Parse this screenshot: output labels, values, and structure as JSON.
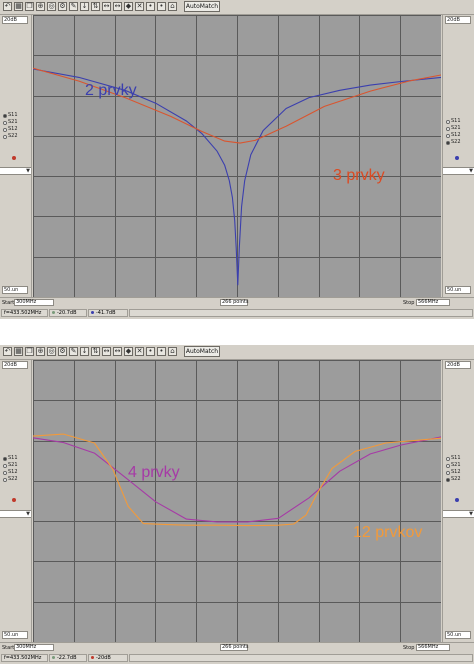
{
  "colors": {
    "window_bg": "#d4d0c8",
    "plot_bg": "#9c9c9c",
    "grid": "#5a5a5a",
    "blue_series": "#3b3fae",
    "red_series": "#d9552f",
    "purple_series": "#a63aa6",
    "orange_series": "#f29a3a",
    "label_blue": "#3b3fae",
    "label_red": "#dc4a22",
    "label_purple": "#a63aa6",
    "label_orange": "#f29a3a"
  },
  "toolbar": {
    "icons": [
      "undo-icon",
      "grid-icon",
      "copy-icon",
      "zoom-icon",
      "circle-icon",
      "settings-icon",
      "tool-icon",
      "down-arrow-icon",
      "flip-icon",
      "left-right-icon",
      "left-right-icon",
      "marker-icon",
      "delete-icon",
      "bullet-icon",
      "bullet-icon",
      "tag-icon"
    ],
    "automatch_label": "AutoMatch"
  },
  "side": {
    "top_scale": "20dB",
    "bottom_scale": "50.un",
    "radio_options": [
      "S11",
      "S21",
      "S12",
      "S22"
    ]
  },
  "panels": [
    {
      "left_selected": "S11",
      "right_selected": "S22",
      "bottom": {
        "start_label": "Start",
        "start_value": "300MHz",
        "points_value": "266 points",
        "stop_label": "Stop",
        "stop_value": "566MHz"
      },
      "status": {
        "frequency": "f=433.502MHz",
        "s11_value": "-20.7dB",
        "s22_value": "-41.7dB"
      },
      "chart_data": {
        "type": "line",
        "x_range": [
          300,
          566
        ],
        "ylim": [
          -50,
          20
        ],
        "grid": true,
        "series": [
          {
            "name": "2 prvky",
            "x": [
              300,
              330,
              360,
              380,
              400,
              410,
              420,
              425,
              428,
              430,
              431.5,
              432.5,
              433.5,
              434.5,
              436,
              438,
              442,
              450,
              465,
              480,
              500,
              520,
              540,
              566
            ],
            "y": [
              6.6,
              4.5,
              1.3,
              -1.9,
              -6.3,
              -9.4,
              -13.8,
              -17.3,
              -21.1,
              -25.3,
              -31.0,
              -37.8,
              -47,
              -37.8,
              -27.5,
              -21.1,
              -14.7,
              -8.7,
              -3.2,
              -0.5,
              1.3,
              2.6,
              3.5,
              4.5
            ]
          },
          {
            "name": "3 prvky",
            "x": [
              300,
              330,
              360,
              390,
              410,
              425,
              435,
              445,
              465,
              490,
              520,
              545,
              566
            ],
            "y": [
              6.8,
              3.6,
              -0.5,
              -5.2,
              -8.9,
              -11.3,
              -11.8,
              -11.1,
              -7.6,
              -2.7,
              1.1,
              3.6,
              5.1
            ]
          }
        ],
        "annotations": [
          "2 prvky",
          "3 prvky"
        ]
      }
    },
    {
      "left_selected": "S11",
      "right_selected": "S22",
      "bottom": {
        "start_label": "Start",
        "start_value": "300MHz",
        "points_value": "266 points",
        "stop_label": "Stop",
        "stop_value": "566MHz"
      },
      "status": {
        "frequency": "f=433.502MHz",
        "s11_value": "-22.7dB",
        "s22_value": "-20dB"
      },
      "chart_data": {
        "type": "line",
        "x_range": [
          300,
          566
        ],
        "ylim": [
          -50,
          20
        ],
        "grid": true,
        "series": [
          {
            "name": "4 prvky",
            "x": [
              300,
              320,
              340,
              360,
              380,
              400,
              420,
              440,
              460,
              480,
              500,
              520,
              540,
              566
            ],
            "y": [
              0.7,
              -0.5,
              -3.1,
              -9.1,
              -15.2,
              -19.5,
              -20.2,
              -20.2,
              -19.3,
              -14.2,
              -7.6,
              -3.3,
              -1.1,
              0.9
            ]
          },
          {
            "name": "12 prvkov",
            "x": [
              300,
              320,
              340,
              352,
              362,
              372,
              385,
              400,
              420,
              440,
              460,
              470,
              478,
              485,
              495,
              510,
              530,
              566
            ],
            "y": [
              1.1,
              1.6,
              -0.6,
              -7.1,
              -16.3,
              -20.6,
              -20.8,
              -21.0,
              -21.0,
              -21.1,
              -21.0,
              -20.7,
              -18.5,
              -13.3,
              -6.9,
              -2.7,
              -0.6,
              0.6
            ]
          }
        ],
        "annotations": [
          "4 prvky",
          "12 prvkov"
        ]
      }
    }
  ]
}
